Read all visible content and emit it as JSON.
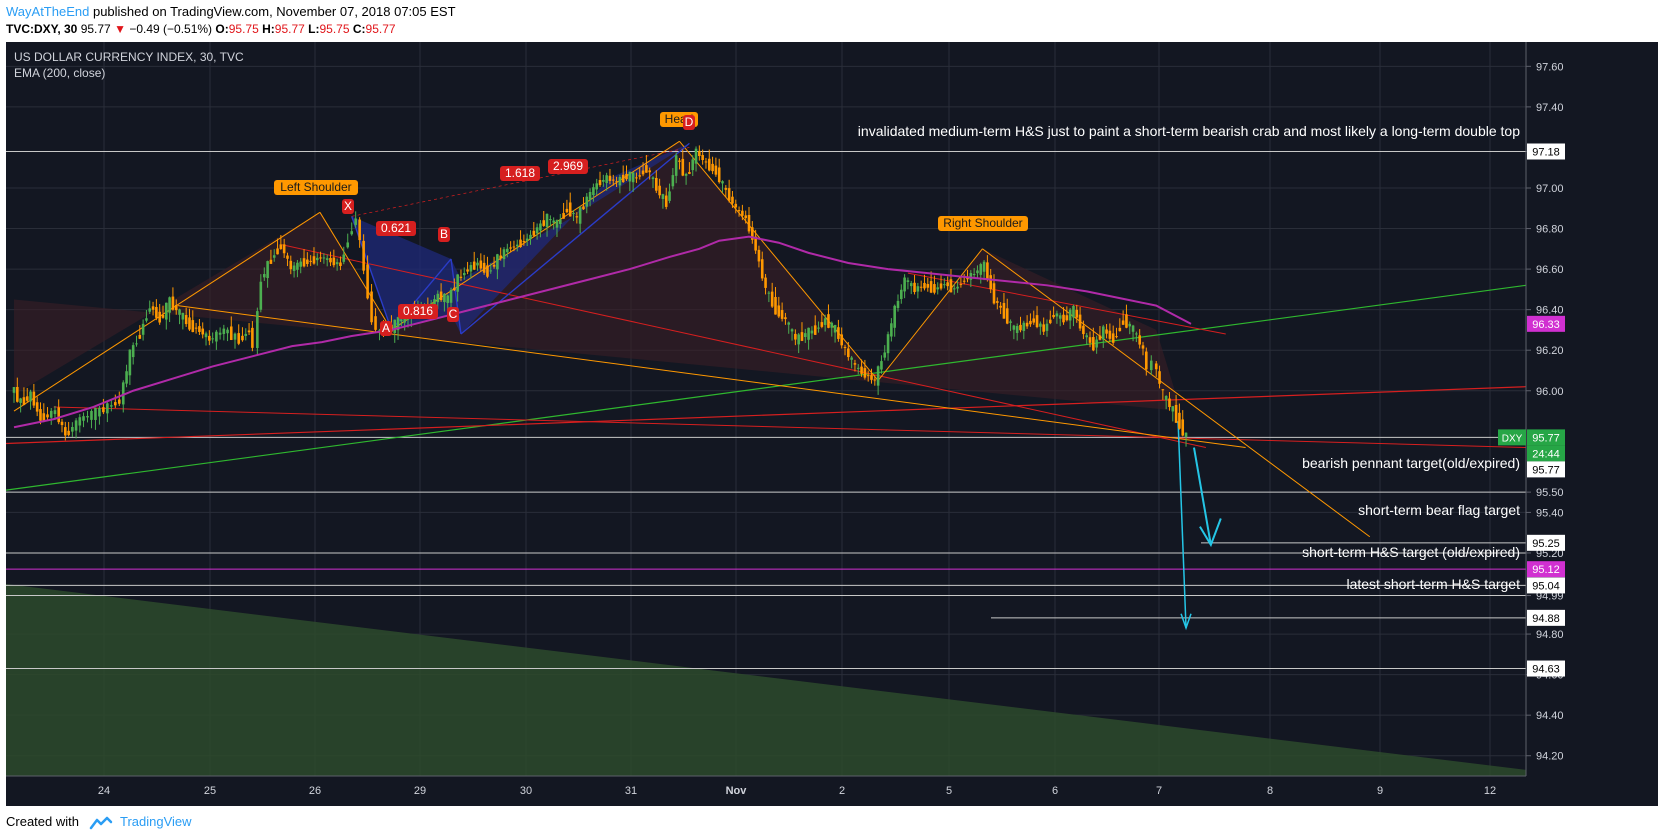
{
  "header": {
    "author": "WayAtTheEnd",
    "published": "published on TradingView.com, November 07, 2018 07:05 EST",
    "symbol": "TVC:DXY, 30",
    "last": "95.77",
    "change_arrow": "▼",
    "change": "−0.49 (−0.51%)",
    "o_label": "O:",
    "o": "95.75",
    "h_label": "H:",
    "h": "95.77",
    "l_label": "L:",
    "l": "95.75",
    "c_label": "C:",
    "c": "95.77"
  },
  "footer": {
    "created_with": "Created with",
    "brand": "TradingView"
  },
  "colors": {
    "background": "#131722",
    "grid": "#2a2e39",
    "up": "#4caf50",
    "down": "#ff9800",
    "ema": "#b02aa8",
    "hs_orange": "#ff9800",
    "trend_red": "#d61f1f",
    "trend_green": "#2fb82f",
    "crab_blue": "#2a3cc8",
    "target_arrow": "#25c6e6"
  },
  "chart_data": {
    "type": "candlestick",
    "title": "US DOLLAR CURRENCY INDEX, 30, TVC",
    "indicator": "EMA (200, close)",
    "yaxis_ticks": [
      "97.60",
      "97.40",
      "97.18",
      "97.00",
      "96.80",
      "96.60",
      "96.40",
      "96.20",
      "96.00",
      "95.50",
      "95.40",
      "95.20",
      "94.99",
      "94.80",
      "94.60",
      "94.40",
      "94.20"
    ],
    "ylim": [
      94.1,
      97.72
    ],
    "xaxis_ticks": [
      "24",
      "25",
      "26",
      "29",
      "30",
      "31",
      "Nov",
      "2",
      "5",
      "6",
      "7",
      "8",
      "9",
      "12"
    ],
    "price_labels": {
      "symbol": "DXY",
      "last": "95.77",
      "countdown": "24:44",
      "prev": "95.77",
      "ema": "96.33",
      "flag_target": "95.25",
      "magenta_level": "95.12",
      "hs_old": "95.04",
      "latest_hs_level": "94.88",
      "top": "97.18",
      "low_line": "94.63"
    },
    "annotations": {
      "top_note": "invalidated medium-term H&S just to paint a short-term bearish crab and most likely a long-term double top",
      "left_shoulder": "Left Shoulder",
      "head": "Head",
      "right_shoulder": "Right Shoulder",
      "fib_1618": "1.618",
      "fib_2969": "2.969",
      "fib_0621": "0.621",
      "fib_0816": "0.816",
      "pt_x": "X",
      "pt_a": "A",
      "pt_b": "B",
      "pt_c": "C",
      "pt_d": "D",
      "pennant": "bearish pennant target(old/expired)",
      "bear_flag": "short-term bear flag target",
      "hs_old_target": "short-term H&S target (old/expired)",
      "hs_latest": "latest short-term H&S target"
    },
    "ema_series": [
      [
        0,
        95.82
      ],
      [
        40,
        95.86
      ],
      [
        80,
        95.92
      ],
      [
        120,
        96.0
      ],
      [
        160,
        96.06
      ],
      [
        200,
        96.12
      ],
      [
        240,
        96.17
      ],
      [
        280,
        96.22
      ],
      [
        310,
        96.24
      ],
      [
        340,
        96.27
      ],
      [
        380,
        96.3
      ],
      [
        420,
        96.35
      ],
      [
        460,
        96.4
      ],
      [
        500,
        96.45
      ],
      [
        540,
        96.5
      ],
      [
        580,
        96.55
      ],
      [
        620,
        96.6
      ],
      [
        660,
        96.66
      ],
      [
        690,
        96.7
      ],
      [
        710,
        96.74
      ],
      [
        740,
        96.76
      ],
      [
        770,
        96.73
      ],
      [
        800,
        96.68
      ],
      [
        840,
        96.63
      ],
      [
        880,
        96.6
      ],
      [
        920,
        96.58
      ],
      [
        960,
        96.56
      ],
      [
        1000,
        96.54
      ],
      [
        1040,
        96.52
      ],
      [
        1080,
        96.49
      ],
      [
        1120,
        96.45
      ],
      [
        1150,
        96.42
      ],
      [
        1185,
        96.33
      ]
    ],
    "price_series": [
      [
        0,
        96.02
      ],
      [
        10,
        95.94
      ],
      [
        20,
        95.98
      ],
      [
        30,
        95.86
      ],
      [
        45,
        95.9
      ],
      [
        55,
        95.78
      ],
      [
        70,
        95.86
      ],
      [
        90,
        95.9
      ],
      [
        110,
        95.95
      ],
      [
        120,
        96.18
      ],
      [
        130,
        96.28
      ],
      [
        140,
        96.42
      ],
      [
        150,
        96.35
      ],
      [
        160,
        96.44
      ],
      [
        170,
        96.38
      ],
      [
        180,
        96.32
      ],
      [
        190,
        96.3
      ],
      [
        200,
        96.25
      ],
      [
        215,
        96.3
      ],
      [
        230,
        96.25
      ],
      [
        240,
        96.3
      ],
      [
        245,
        96.22
      ],
      [
        252,
        96.55
      ],
      [
        262,
        96.65
      ],
      [
        272,
        96.72
      ],
      [
        282,
        96.6
      ],
      [
        292,
        96.63
      ],
      [
        302,
        96.64
      ],
      [
        312,
        96.66
      ],
      [
        322,
        96.64
      ],
      [
        332,
        96.62
      ],
      [
        340,
        96.75
      ],
      [
        348,
        96.86
      ],
      [
        356,
        96.6
      ],
      [
        364,
        96.35
      ],
      [
        372,
        96.28
      ],
      [
        380,
        96.3
      ],
      [
        390,
        96.34
      ],
      [
        400,
        96.38
      ],
      [
        410,
        96.42
      ],
      [
        420,
        96.4
      ],
      [
        430,
        96.47
      ],
      [
        440,
        96.45
      ],
      [
        450,
        96.55
      ],
      [
        460,
        96.6
      ],
      [
        470,
        96.63
      ],
      [
        480,
        96.58
      ],
      [
        490,
        96.65
      ],
      [
        500,
        96.7
      ],
      [
        510,
        96.72
      ],
      [
        520,
        96.75
      ],
      [
        530,
        96.8
      ],
      [
        540,
        96.85
      ],
      [
        550,
        96.82
      ],
      [
        560,
        96.9
      ],
      [
        570,
        96.85
      ],
      [
        580,
        96.95
      ],
      [
        590,
        97.02
      ],
      [
        600,
        97.05
      ],
      [
        610,
        97.03
      ],
      [
        620,
        97.06
      ],
      [
        630,
        97.05
      ],
      [
        640,
        97.1
      ],
      [
        650,
        97.0
      ],
      [
        660,
        96.92
      ],
      [
        670,
        97.15
      ],
      [
        680,
        97.05
      ],
      [
        690,
        97.18
      ],
      [
        700,
        97.12
      ],
      [
        710,
        97.08
      ],
      [
        720,
        96.98
      ],
      [
        730,
        96.9
      ],
      [
        740,
        96.85
      ],
      [
        750,
        96.7
      ],
      [
        760,
        96.5
      ],
      [
        770,
        96.4
      ],
      [
        780,
        96.35
      ],
      [
        790,
        96.25
      ],
      [
        800,
        96.28
      ],
      [
        810,
        96.3
      ],
      [
        820,
        96.35
      ],
      [
        830,
        96.3
      ],
      [
        840,
        96.2
      ],
      [
        850,
        96.12
      ],
      [
        860,
        96.08
      ],
      [
        870,
        96.05
      ],
      [
        880,
        96.2
      ],
      [
        890,
        96.4
      ],
      [
        900,
        96.55
      ],
      [
        910,
        96.5
      ],
      [
        920,
        96.52
      ],
      [
        930,
        96.5
      ],
      [
        940,
        96.53
      ],
      [
        950,
        96.5
      ],
      [
        960,
        96.55
      ],
      [
        970,
        96.58
      ],
      [
        980,
        96.62
      ],
      [
        990,
        96.45
      ],
      [
        1000,
        96.38
      ],
      [
        1010,
        96.3
      ],
      [
        1020,
        96.32
      ],
      [
        1030,
        96.35
      ],
      [
        1040,
        96.3
      ],
      [
        1050,
        96.38
      ],
      [
        1060,
        96.35
      ],
      [
        1070,
        96.4
      ],
      [
        1080,
        96.28
      ],
      [
        1090,
        96.22
      ],
      [
        1100,
        96.3
      ],
      [
        1110,
        96.25
      ],
      [
        1120,
        96.35
      ],
      [
        1130,
        96.3
      ],
      [
        1140,
        96.2
      ],
      [
        1145,
        96.1
      ],
      [
        1150,
        96.15
      ],
      [
        1160,
        95.98
      ],
      [
        1170,
        95.9
      ],
      [
        1180,
        95.8
      ],
      [
        1185,
        95.77
      ]
    ]
  }
}
